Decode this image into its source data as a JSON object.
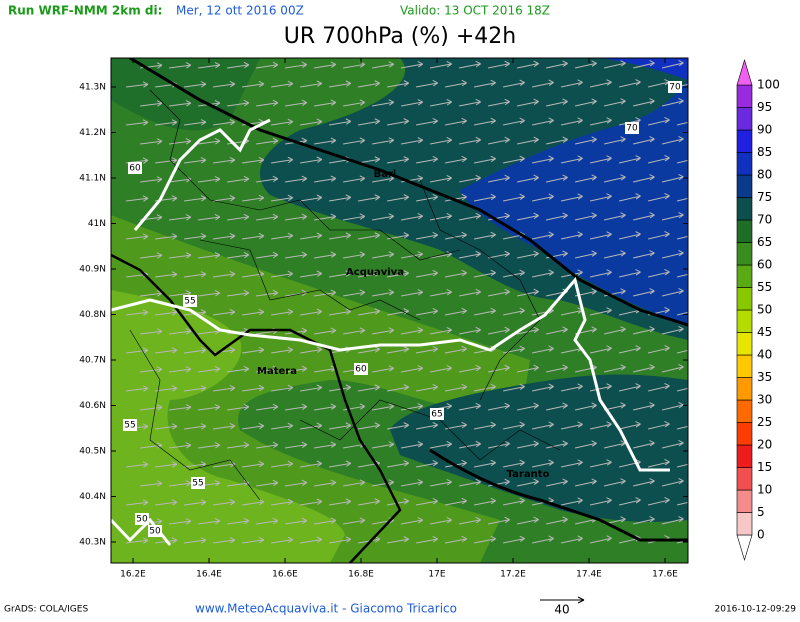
{
  "header": {
    "run": "Run WRF-NMM 2km di:",
    "run_date": "Mer, 12 ott 2016 00Z",
    "valid": "Valido: 13 OCT 2016 18Z",
    "title": "UR 700hPa (%) +42h"
  },
  "map": {
    "lat_labels": [
      "41.3N",
      "41.2N",
      "41.1N",
      "41N",
      "40.9N",
      "40.8N",
      "40.7N",
      "40.6N",
      "40.5N",
      "40.4N",
      "40.3N"
    ],
    "lon_labels": [
      "16.2E",
      "16.4E",
      "16.6E",
      "16.8E",
      "17E",
      "17.2E",
      "17.4E",
      "17.6E"
    ],
    "cities": [
      "Bari",
      "Acquaviva",
      "Matera",
      "Taranto"
    ],
    "contour_labels": [
      "70",
      "70",
      "60",
      "55",
      "60",
      "65",
      "55",
      "55",
      "50",
      "50"
    ]
  },
  "colorbar": {
    "labels": [
      "0",
      "5",
      "10",
      "15",
      "20",
      "25",
      "30",
      "35",
      "40",
      "45",
      "50",
      "55",
      "60",
      "65",
      "70",
      "75",
      "80",
      "85",
      "90",
      "95",
      "100"
    ],
    "colors": [
      "#ffffff",
      "#f7c6c6",
      "#f48c8c",
      "#f25050",
      "#ee1c1c",
      "#ff3c00",
      "#ff6a00",
      "#ff9a00",
      "#ffc800",
      "#e6e600",
      "#b4dc00",
      "#88c800",
      "#5aaa14",
      "#3a8c1e",
      "#1e6e28",
      "#0d4f4f",
      "#0a3a8a",
      "#1030c0",
      "#2020e0",
      "#6a2ae0",
      "#9a2ae0",
      "#c030e0",
      "#f060f0"
    ]
  },
  "footer": {
    "left": "GrADS: COLA/IGES",
    "center": "www.MeteoAcquaviva.it - Giacomo Tricarico",
    "arrow_scale": "40",
    "right": "2016-10-12-09:29"
  }
}
